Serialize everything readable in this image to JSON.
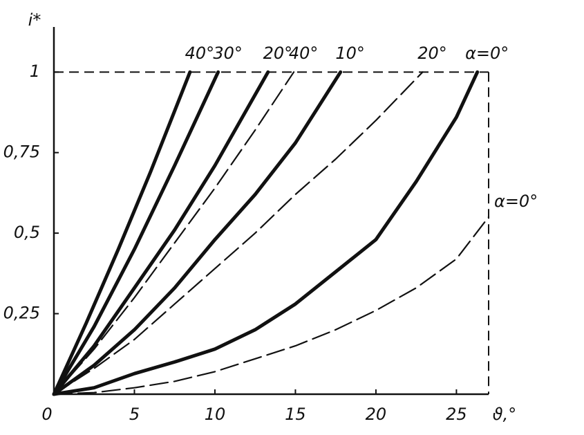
{
  "chart_data": {
    "type": "line",
    "y_label": "i*",
    "x_label": "ϑ,°",
    "xlim": [
      0,
      27
    ],
    "ylim": [
      0,
      1.14
    ],
    "xticks": [
      0,
      5,
      10,
      15,
      20,
      25
    ],
    "yticks": [
      {
        "value": 0.25,
        "label": "0,25"
      },
      {
        "value": 0.5,
        "label": "0,5"
      },
      {
        "value": 0.75,
        "label": "0,75"
      },
      {
        "value": 1,
        "label": "1"
      }
    ],
    "color": "#111111",
    "series": [
      {
        "name": "40°",
        "style": "solid",
        "x": [
          0,
          2,
          4,
          6,
          8.45
        ],
        "values": [
          0,
          0.22,
          0.45,
          0.69,
          1
        ]
      },
      {
        "name": "30°",
        "style": "solid",
        "x": [
          0,
          2.5,
          5,
          7.5,
          10.2
        ],
        "values": [
          0,
          0.21,
          0.45,
          0.71,
          1
        ]
      },
      {
        "name": "20°",
        "style": "solid",
        "x": [
          0,
          2.5,
          5,
          7.5,
          10,
          13.3
        ],
        "values": [
          0,
          0.15,
          0.33,
          0.51,
          0.71,
          1
        ]
      },
      {
        "name": "40°",
        "style": "dashed",
        "x": [
          0,
          2.5,
          5,
          7.5,
          10,
          12.5,
          14.9
        ],
        "values": [
          0,
          0.14,
          0.3,
          0.47,
          0.64,
          0.82,
          1
        ]
      },
      {
        "name": "10°",
        "style": "solid",
        "x": [
          0,
          2.5,
          5,
          7.5,
          10,
          12.5,
          15,
          17.8
        ],
        "values": [
          0,
          0.09,
          0.2,
          0.33,
          0.48,
          0.62,
          0.78,
          1
        ]
      },
      {
        "name": "20°",
        "style": "dashed",
        "x": [
          0,
          2.5,
          5,
          7.5,
          10,
          12.5,
          15,
          17.5,
          20,
          22.9
        ],
        "values": [
          0,
          0.08,
          0.17,
          0.28,
          0.39,
          0.5,
          0.62,
          0.73,
          0.85,
          1
        ]
      },
      {
        "name": "α=0°",
        "style": "solid",
        "x": [
          0,
          2.5,
          5,
          7.5,
          10,
          12.5,
          15,
          17.5,
          20,
          22.5,
          25,
          26.3
        ],
        "values": [
          0,
          0.02,
          0.064,
          0.1,
          0.14,
          0.2,
          0.28,
          0.38,
          0.48,
          0.66,
          0.86,
          1
        ]
      },
      {
        "name": "α=0°",
        "style": "dashed",
        "x": [
          0,
          2.5,
          5,
          7.5,
          10,
          12.5,
          15,
          17.5,
          20,
          22.5,
          25,
          27
        ],
        "values": [
          0,
          0.005,
          0.02,
          0.04,
          0.07,
          0.11,
          0.15,
          0.2,
          0.26,
          0.33,
          0.42,
          0.55
        ]
      }
    ]
  }
}
